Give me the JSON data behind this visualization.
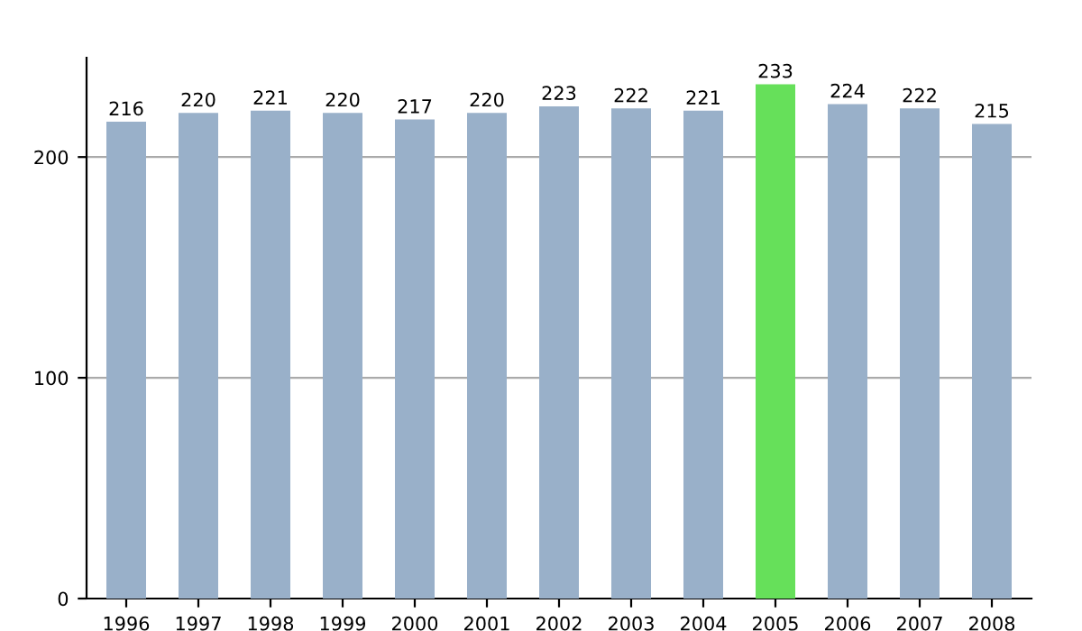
{
  "chart_data": {
    "type": "bar",
    "categories": [
      "1996",
      "1997",
      "1998",
      "1999",
      "2000",
      "2001",
      "2002",
      "2003",
      "2004",
      "2005",
      "2006",
      "2007",
      "2008"
    ],
    "values": [
      216,
      220,
      221,
      220,
      217,
      220,
      223,
      222,
      221,
      233,
      224,
      222,
      215
    ],
    "colors": [
      "#99b0c9",
      "#99b0c9",
      "#99b0c9",
      "#99b0c9",
      "#99b0c9",
      "#99b0c9",
      "#99b0c9",
      "#99b0c9",
      "#99b0c9",
      "#66e05a",
      "#99b0c9",
      "#99b0c9",
      "#99b0c9"
    ],
    "ylim": [
      0,
      245
    ],
    "yticks": [
      0,
      100,
      200
    ],
    "grid": "y",
    "data_labels": true
  }
}
